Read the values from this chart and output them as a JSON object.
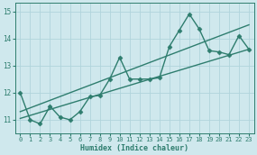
{
  "xlabel": "Humidex (Indice chaleur)",
  "xlim": [
    -0.5,
    23.5
  ],
  "ylim": [
    10.5,
    15.3
  ],
  "yticks": [
    11,
    12,
    13,
    14,
    15
  ],
  "xticks": [
    0,
    1,
    2,
    3,
    4,
    5,
    6,
    7,
    8,
    9,
    10,
    11,
    12,
    13,
    14,
    15,
    16,
    17,
    18,
    19,
    20,
    21,
    22,
    23
  ],
  "bg_color": "#cfe8ed",
  "grid_color": "#b0d4dc",
  "line_color": "#2e7d6e",
  "series": [
    {
      "x": [
        0,
        1,
        2,
        3,
        4,
        5,
        6,
        7,
        8,
        9,
        10,
        11,
        12,
        13,
        14,
        15,
        16,
        17,
        18,
        19,
        20,
        21,
        22,
        23
      ],
      "y": [
        12.0,
        11.0,
        10.85,
        11.5,
        11.1,
        11.0,
        11.3,
        11.85,
        11.9,
        12.5,
        13.3,
        12.5,
        12.5,
        12.5,
        12.55,
        13.7,
        14.3,
        14.9,
        14.35,
        13.55,
        13.5,
        13.4,
        14.1,
        13.6
      ],
      "has_markers": true
    },
    {
      "x": [
        0,
        23
      ],
      "y": [
        11.05,
        13.6
      ],
      "has_markers": false
    },
    {
      "x": [
        0,
        23
      ],
      "y": [
        11.3,
        14.5
      ],
      "has_markers": false
    }
  ],
  "marker": "D",
  "markersize": 2.5,
  "linewidth": 1.0
}
